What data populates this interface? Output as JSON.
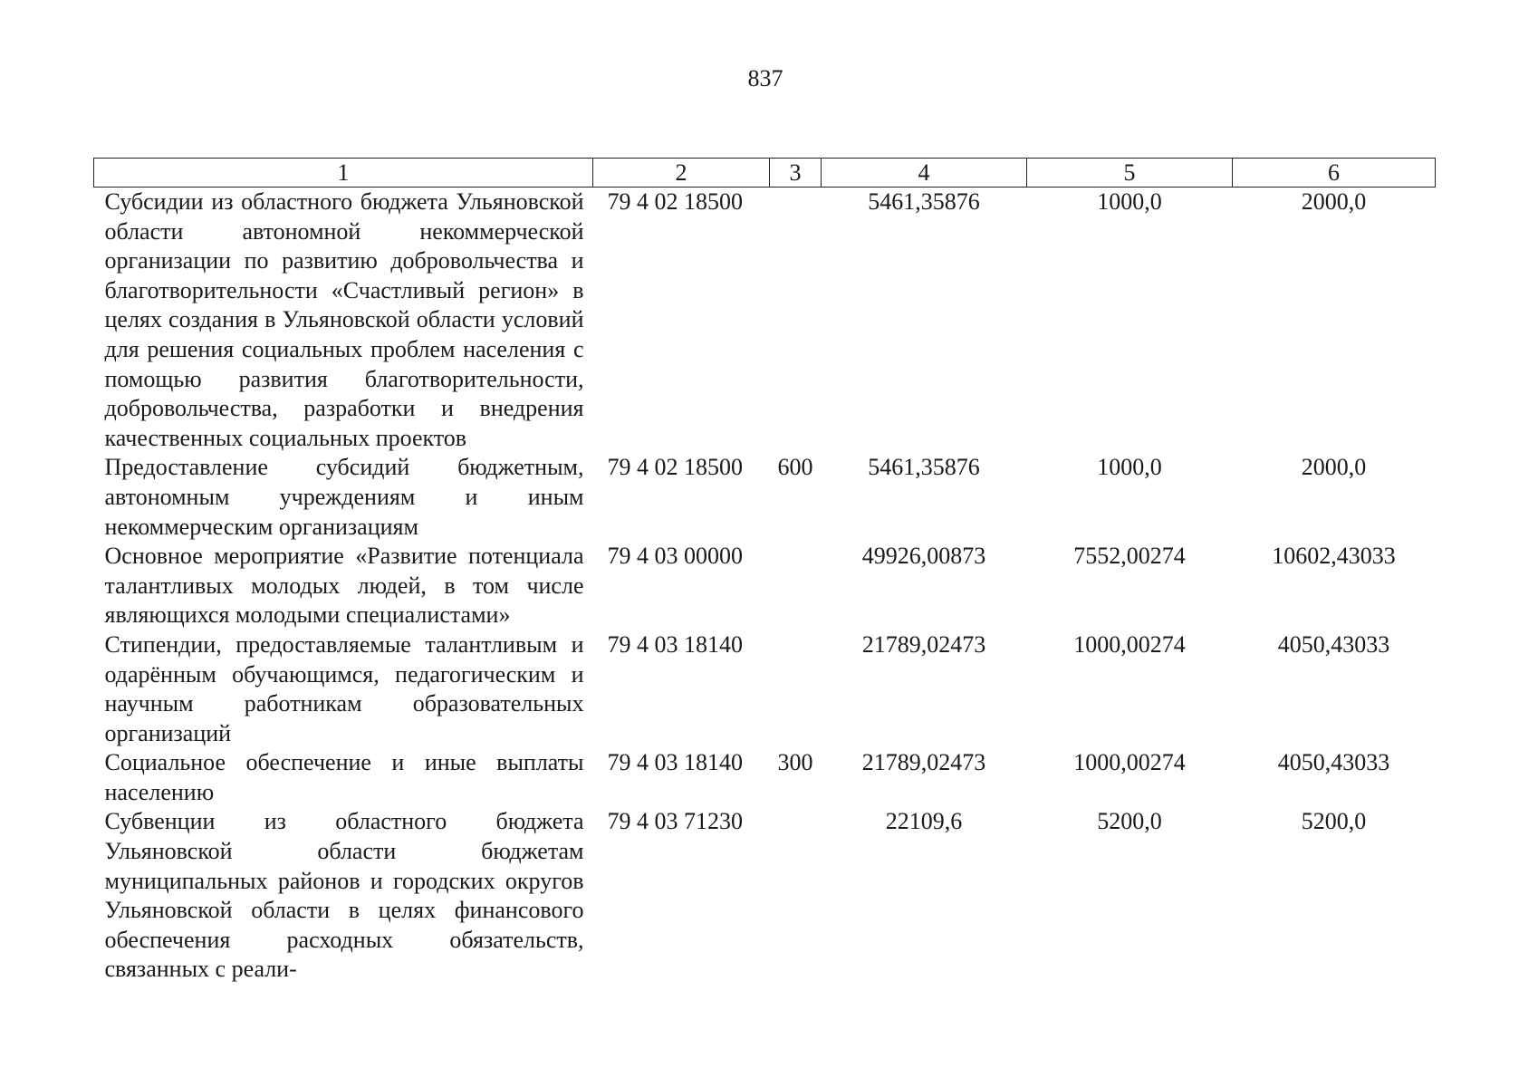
{
  "page_number": "837",
  "headers": [
    "1",
    "2",
    "3",
    "4",
    "5",
    "6"
  ],
  "rows": [
    {
      "name": "Субсидии из областного бюджета Ульяновской области автономной некоммерческой организации по развитию добровольчества и благотворительности «Счастливый регион» в целях создания в Ульяновской области условий для решения социальных проблем населения с помощью развития благотворительности, добровольчества, разработки и внедрения качественных социальных проектов",
      "code": "79 4 02 18500",
      "type": "",
      "v4": "5461,35876",
      "v5": "1000,0",
      "v6": "2000,0"
    },
    {
      "name": "Предоставление субсидий бюджетным, автономным учреждениям и иным некоммерческим организациям",
      "code": "79 4 02 18500",
      "type": "600",
      "v4": "5461,35876",
      "v5": "1000,0",
      "v6": "2000,0"
    },
    {
      "name": "Основное мероприятие «Развитие потенциала талантливых молодых людей, в том числе являющихся молодыми специалистами»",
      "code": "79 4 03 00000",
      "type": "",
      "v4": "49926,00873",
      "v5": "7552,00274",
      "v6": "10602,43033"
    },
    {
      "name": "Стипендии, предоставляемые талантливым и одарённым обучающимся, педагогическим и научным работникам образовательных организаций",
      "code": "79 4 03 18140",
      "type": "",
      "v4": "21789,02473",
      "v5": "1000,00274",
      "v6": "4050,43033"
    },
    {
      "name": "Социальное обеспечение и иные выплаты населению",
      "code": "79 4 03 18140",
      "type": "300",
      "v4": "21789,02473",
      "v5": "1000,00274",
      "v6": "4050,43033"
    },
    {
      "name": "Субвенции из областного бюджета Ульяновской области бюджетам муниципальных районов и городских округов Ульяновской области в целях финансового обеспечения расходных обязательств, связанных с реали-",
      "code": "79 4 03 71230",
      "type": "",
      "v4": "22109,6",
      "v5": "5200,0",
      "v6": "5200,0"
    }
  ]
}
